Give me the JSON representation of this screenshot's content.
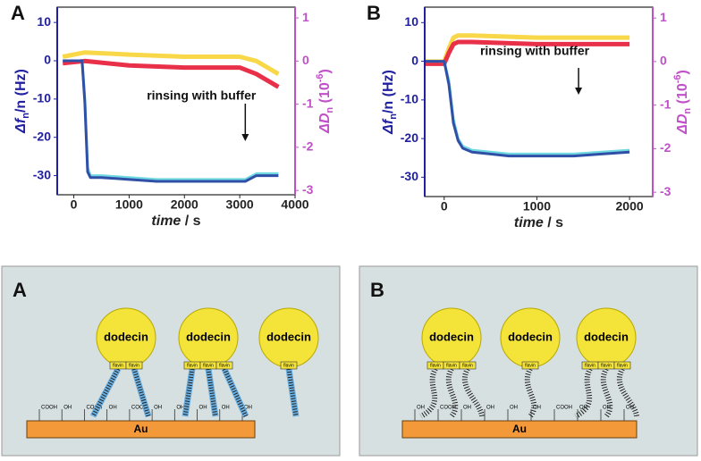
{
  "chart_data": [
    {
      "type": "line",
      "panel": "A",
      "y_label_parts": [
        "Δf",
        "n",
        "/n (Hz)"
      ],
      "y2_label_parts": [
        "ΔD",
        "n",
        " (10",
        "-6",
        ")"
      ],
      "x_label_parts": [
        "time",
        " / s"
      ],
      "xlim": [
        -300,
        4000
      ],
      "xticks": [
        0,
        1000,
        2000,
        3000,
        4000
      ],
      "ylim": [
        -35,
        14
      ],
      "yticks": [
        10,
        0,
        -10,
        -20,
        -30
      ],
      "y2lim": [
        -3.1,
        1.25
      ],
      "y2ticks": [
        1,
        0,
        -1,
        -2,
        -3
      ],
      "series": [
        {
          "color": "#f8d848",
          "axis": "y2",
          "x": [
            -200,
            200,
            1000,
            2000,
            3000,
            3300,
            3700
          ],
          "values": [
            0.1,
            0.2,
            0.15,
            0.1,
            0.1,
            0.0,
            -0.3
          ]
        },
        {
          "color": "#e83048",
          "axis": "y2",
          "x": [
            -200,
            200,
            1000,
            2000,
            3000,
            3300,
            3700
          ],
          "values": [
            -0.05,
            0.0,
            -0.1,
            -0.15,
            -0.15,
            -0.3,
            -0.6
          ]
        },
        {
          "color": "#70d8e0",
          "x": [
            -200,
            150,
            200,
            250,
            300,
            500,
            1000,
            1500,
            2000,
            2500,
            3000,
            3100,
            3300,
            3700
          ],
          "values": [
            0,
            0,
            -10,
            -28,
            -30,
            -30,
            -30.5,
            -31,
            -31,
            -31,
            -31,
            -31,
            -29.5,
            -29.5
          ]
        },
        {
          "color": "#3050a8",
          "x": [
            -200,
            150,
            200,
            250,
            300,
            500,
            1000,
            1500,
            2000,
            2500,
            3000,
            3100,
            3300,
            3700
          ],
          "values": [
            0,
            0,
            -11,
            -29,
            -30.5,
            -30.5,
            -31,
            -31.5,
            -31.5,
            -31.5,
            -31.5,
            -31.5,
            -30,
            -30
          ]
        }
      ],
      "annotation": {
        "text": "rinsing with buffer",
        "x": 3100
      }
    },
    {
      "type": "line",
      "panel": "B",
      "y_label_parts": [
        "Δf",
        "n",
        "/n (Hz)"
      ],
      "y2_label_parts": [
        "ΔD",
        "n",
        " (10",
        "-6",
        ")"
      ],
      "x_label_parts": [
        "time",
        " / s"
      ],
      "xlim": [
        -210,
        2250
      ],
      "xticks": [
        0,
        1000,
        2000
      ],
      "ylim": [
        -35,
        14
      ],
      "yticks": [
        10,
        0,
        -10,
        -20,
        -30
      ],
      "y2lim": [
        -3.1,
        1.25
      ],
      "y2ticks": [
        1,
        0,
        -1,
        -2,
        -3
      ],
      "series": [
        {
          "color": "#f8d848",
          "axis": "y2",
          "x": [
            -200,
            0,
            50,
            100,
            150,
            300,
            1000,
            2000
          ],
          "values": [
            0,
            0,
            0.3,
            0.55,
            0.6,
            0.6,
            0.55,
            0.55
          ]
        },
        {
          "color": "#e83048",
          "axis": "y2",
          "x": [
            -200,
            0,
            50,
            100,
            150,
            300,
            1000,
            2000
          ],
          "values": [
            -0.05,
            -0.05,
            0.2,
            0.4,
            0.45,
            0.45,
            0.4,
            0.4
          ]
        },
        {
          "color": "#70d8e0",
          "x": [
            -200,
            0,
            50,
            100,
            150,
            200,
            300,
            500,
            700,
            1000,
            1400,
            1700,
            2000
          ],
          "values": [
            0,
            0,
            -5,
            -15,
            -20,
            -22,
            -23,
            -23.5,
            -24,
            -24,
            -24,
            -23.5,
            -23
          ]
        },
        {
          "color": "#3050a8",
          "x": [
            -200,
            0,
            50,
            100,
            150,
            200,
            300,
            500,
            700,
            1000,
            1400,
            1700,
            2000
          ],
          "values": [
            0,
            0,
            -6,
            -16,
            -20.5,
            -22.5,
            -23.5,
            -24,
            -24.5,
            -24.5,
            -24.5,
            -24,
            -23.5
          ]
        }
      ],
      "annotation": {
        "text": "rinsing with buffer",
        "x": 1450
      }
    }
  ],
  "diagrams": [
    {
      "label": "A",
      "substrate": "Au",
      "circles": [
        "dodecin",
        "dodecin",
        "dodecin"
      ],
      "flavins": [
        [
          "flavin",
          "flavin"
        ],
        [
          "flavin",
          "flavin",
          "flavin"
        ],
        [
          "flavin"
        ]
      ],
      "ligands": [
        "COOH",
        "OH",
        "COOH",
        "OH",
        "COOH",
        "OH",
        "OH",
        "OH",
        "OH",
        "OH"
      ]
    },
    {
      "label": "B",
      "substrate": "Au",
      "circles": [
        "dodecin",
        "dodecin",
        "dodecin"
      ],
      "flavins": [
        [
          "flavin",
          "flavin",
          "flavin"
        ],
        [
          "flavin"
        ],
        [
          "flavin",
          "flavin",
          "flavin"
        ]
      ],
      "ligands": [
        "OH",
        "COOH",
        "OH",
        "OH",
        "OH",
        "OH",
        "COOH",
        "OH",
        "OH",
        "OH"
      ]
    }
  ]
}
